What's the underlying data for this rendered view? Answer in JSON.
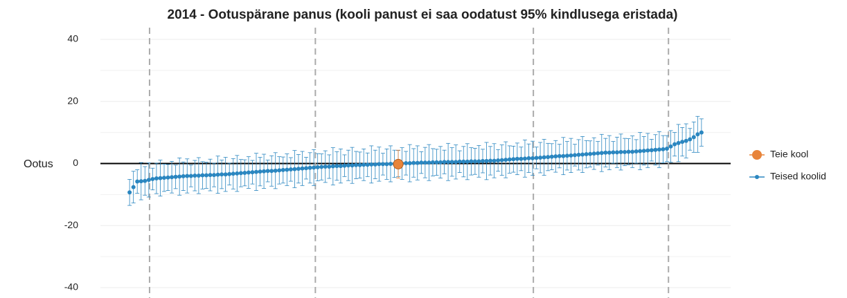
{
  "chart_data": {
    "type": "errorbar",
    "title": "2014 - Ootuspärane panus (kooli panust ei saa oodatust 95% kindlusega eristada)",
    "ylabel": "Ootus",
    "ylim": [
      -42,
      42
    ],
    "yticks": [
      -40,
      -20,
      0,
      20,
      40
    ],
    "minor_yticks": [
      -30,
      -10,
      10,
      30
    ],
    "xlim": [
      -6.6,
      157.6
    ],
    "vlines": [
      6.2,
      49.4,
      106.2,
      141.4
    ],
    "grid": true,
    "legend": "right",
    "series": [
      {
        "name": "Teie kool",
        "color": "#e8843a",
        "x": [
          71
        ],
        "values": [
          -0.2
        ],
        "errors": [
          4.5
        ]
      },
      {
        "name": "Teised koolid",
        "color": "#2a86c0",
        "values": [
          -9.3,
          -7.6,
          -5.8,
          -5.7,
          -5.6,
          -5.3,
          -5.0,
          -4.8,
          -4.7,
          -4.6,
          -4.5,
          -4.4,
          -4.3,
          -4.2,
          -4.1,
          -4.0,
          -4.0,
          -3.9,
          -3.9,
          -3.8,
          -3.8,
          -3.7,
          -3.7,
          -3.6,
          -3.5,
          -3.5,
          -3.4,
          -3.3,
          -3.2,
          -3.1,
          -3.0,
          -2.9,
          -2.8,
          -2.7,
          -2.6,
          -2.5,
          -2.4,
          -2.4,
          -2.3,
          -2.2,
          -2.1,
          -2.0,
          -1.9,
          -1.8,
          -1.7,
          -1.6,
          -1.5,
          -1.4,
          -1.3,
          -1.2,
          -1.1,
          -1.0,
          -1.0,
          -0.9,
          -0.8,
          -0.8,
          -0.7,
          -0.6,
          -0.6,
          -0.5,
          -0.5,
          -0.4,
          -0.4,
          -0.3,
          -0.3,
          -0.2,
          -0.2,
          -0.2,
          -0.1,
          -0.1,
          0.0,
          0.0,
          0.1,
          0.1,
          0.2,
          0.2,
          0.3,
          0.3,
          0.3,
          0.4,
          0.4,
          0.4,
          0.5,
          0.5,
          0.5,
          0.5,
          0.6,
          0.6,
          0.6,
          0.7,
          0.7,
          0.7,
          0.8,
          0.8,
          0.9,
          0.9,
          1.0,
          1.1,
          1.2,
          1.3,
          1.4,
          1.5,
          1.5,
          1.6,
          1.7,
          1.7,
          1.8,
          1.9,
          2.0,
          2.1,
          2.2,
          2.3,
          2.4,
          2.4,
          2.5,
          2.6,
          2.7,
          2.8,
          2.9,
          3.0,
          3.1,
          3.2,
          3.3,
          3.4,
          3.5,
          3.5,
          3.6,
          3.6,
          3.7,
          3.7,
          3.8,
          3.8,
          3.9,
          4.0,
          4.1,
          4.2,
          4.3,
          4.4,
          4.5,
          4.6,
          4.8,
          5.5,
          6.2,
          6.6,
          7.0,
          7.3,
          7.8,
          8.5,
          9.4,
          10.0
        ],
        "errors": [
          4.2,
          5.1,
          3.8,
          6.0,
          4.6,
          5.5,
          3.5,
          4.9,
          5.8,
          4.4,
          4.2,
          5.1,
          3.8,
          6.0,
          4.6,
          5.5,
          3.5,
          4.9,
          5.8,
          4.4,
          4.2,
          5.1,
          3.8,
          6.0,
          4.6,
          5.5,
          3.5,
          4.9,
          5.8,
          4.4,
          4.2,
          5.1,
          3.8,
          6.0,
          4.6,
          5.5,
          3.5,
          4.9,
          5.8,
          4.4,
          4.2,
          5.1,
          3.8,
          6.0,
          4.6,
          5.5,
          3.5,
          4.9,
          5.8,
          4.4,
          4.2,
          5.1,
          3.8,
          6.0,
          4.6,
          5.5,
          3.5,
          4.9,
          5.8,
          4.4,
          4.2,
          5.1,
          3.8,
          6.0,
          4.6,
          5.5,
          3.5,
          4.9,
          5.8,
          4.4,
          4.2,
          5.1,
          3.8,
          6.0,
          4.6,
          5.5,
          3.5,
          4.9,
          5.8,
          4.4,
          4.2,
          5.1,
          3.8,
          6.0,
          4.6,
          5.5,
          3.5,
          4.9,
          5.8,
          4.4,
          4.2,
          5.1,
          3.8,
          6.0,
          4.6,
          5.5,
          3.5,
          4.9,
          5.8,
          4.4,
          4.2,
          5.1,
          3.8,
          6.0,
          4.6,
          5.5,
          3.5,
          4.9,
          5.8,
          4.4,
          4.2,
          5.1,
          3.8,
          6.0,
          4.6,
          5.5,
          3.5,
          4.9,
          5.8,
          4.4,
          4.2,
          5.1,
          3.8,
          6.0,
          4.6,
          5.5,
          3.5,
          4.9,
          5.8,
          4.4,
          4.2,
          5.1,
          3.8,
          6.0,
          4.6,
          5.5,
          3.5,
          4.9,
          5.8,
          4.4,
          4.2,
          5.1,
          3.8,
          6.0,
          4.6,
          5.5,
          3.5,
          4.9,
          5.8,
          4.4
        ]
      }
    ]
  }
}
